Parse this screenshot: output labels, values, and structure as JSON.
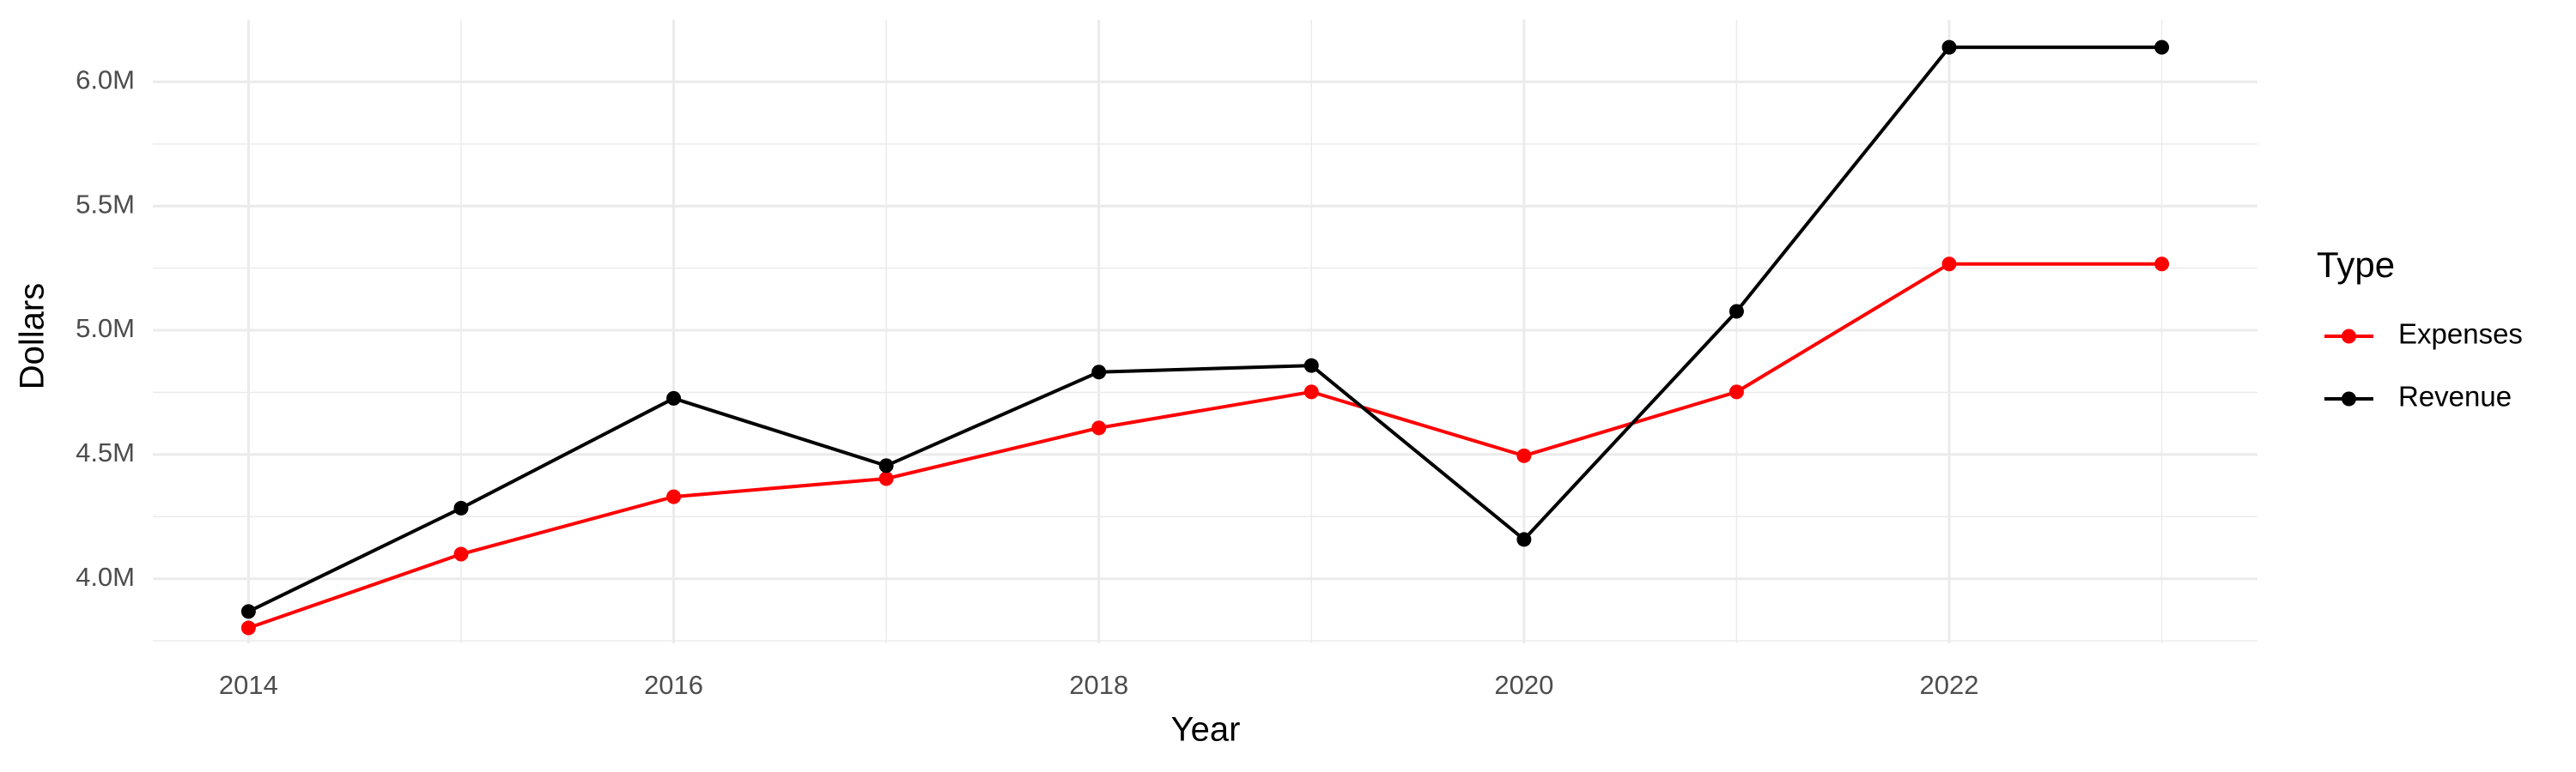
{
  "chart_data": {
    "type": "line",
    "x_label": "Year",
    "y_label": "Dollars",
    "legend_title": "Type",
    "legend": "right",
    "grid": true,
    "x": [
      2014,
      2015,
      2016,
      2017,
      2018,
      2019,
      2020,
      2021,
      2022,
      2023
    ],
    "series": [
      {
        "name": "Expenses",
        "color": "#ff0000",
        "values": [
          3802000,
          4099000,
          4330000,
          4403000,
          4607000,
          4752000,
          4495000,
          4752000,
          5267000,
          5267000
        ]
      },
      {
        "name": "Revenue",
        "color": "#000000",
        "values": [
          3868000,
          4284000,
          4726000,
          4455000,
          4832000,
          4858000,
          4158000,
          5076000,
          6139000,
          6139000
        ]
      }
    ],
    "xlim": [
      2013.55,
      2023.45
    ],
    "xticks": [
      2014,
      2016,
      2018,
      2020,
      2022
    ],
    "ylim": [
      3740000,
      6250000
    ],
    "yticks": [
      {
        "value": 4000000,
        "label": "4.0M"
      },
      {
        "value": 4500000,
        "label": "4.5M"
      },
      {
        "value": 5000000,
        "label": "5.0M"
      },
      {
        "value": 5500000,
        "label": "5.5M"
      },
      {
        "value": 6000000,
        "label": "6.0M"
      }
    ]
  }
}
